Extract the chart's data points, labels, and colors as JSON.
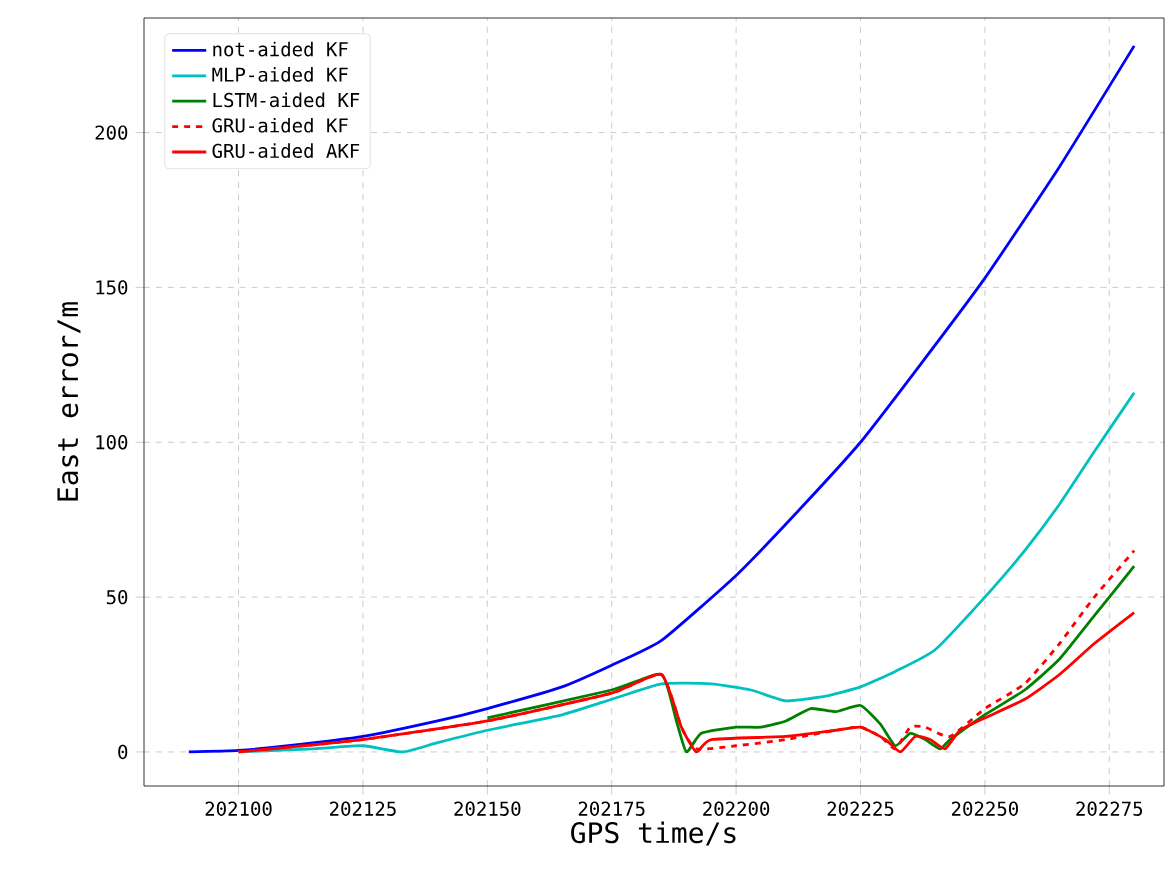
{
  "chart_data": {
    "type": "line",
    "xlabel": "GPS time/s",
    "ylabel": "East error/m",
    "xlim": [
      202081,
      202286
    ],
    "ylim": [
      -11,
      237
    ],
    "xticks": [
      202100,
      202125,
      202150,
      202175,
      202200,
      202225,
      202250,
      202275
    ],
    "yticks": [
      0,
      50,
      100,
      150,
      200
    ],
    "grid": true,
    "legend": "top left",
    "series": [
      {
        "name": "not-aided KF",
        "color": "#0000ff",
        "line_style": "solid",
        "x": [
          202090,
          202100,
          202110,
          202125,
          202140,
          202150,
          202165,
          202175,
          202185,
          202200,
          202212,
          202225,
          202237,
          202250,
          202265,
          202280
        ],
        "values": [
          0,
          0.5,
          2,
          5,
          10,
          14,
          21,
          28,
          36,
          57,
          77,
          100,
          125,
          153,
          189,
          228
        ]
      },
      {
        "name": "MLP-aided KF",
        "color": "#00c0c0",
        "line_style": "solid",
        "x": [
          202100,
          202115,
          202125,
          202133,
          202140,
          202150,
          202165,
          202175,
          202185,
          202195,
          202203,
          202210,
          202218,
          202225,
          202232,
          202240,
          202250,
          202258,
          202265,
          202272,
          202280
        ],
        "values": [
          0,
          1,
          2,
          0,
          3,
          7,
          12,
          17,
          22,
          22,
          20,
          16.5,
          18,
          21,
          26,
          33,
          50,
          65,
          80,
          97,
          116
        ]
      },
      {
        "name": "LSTM-aided KF",
        "color": "#008000",
        "line_style": "solid",
        "x": [
          202150,
          202175,
          202185,
          202188,
          202190,
          202193,
          202200,
          202205,
          202210,
          202215,
          202220,
          202225,
          202229,
          202232,
          202235,
          202238,
          202241,
          202243,
          202250,
          202258,
          202265,
          202272,
          202280
        ],
        "values": [
          11,
          20,
          25,
          10,
          0,
          6,
          8,
          8,
          10,
          14,
          13,
          15,
          9,
          2,
          6,
          4,
          1,
          4,
          12,
          20,
          30,
          44,
          60
        ]
      },
      {
        "name": "GRU-aided KF",
        "color": "#ff0000",
        "line_style": "dashed",
        "x": [
          202100,
          202125,
          202150,
          202175,
          202185,
          202189,
          202192,
          202200,
          202210,
          202220,
          202225,
          202229,
          202232,
          202235,
          202238,
          202243,
          202250,
          202258,
          202265,
          202272,
          202280
        ],
        "values": [
          0,
          4,
          10,
          19,
          25,
          8,
          1,
          2,
          4,
          7,
          8,
          5,
          1,
          8,
          8,
          5,
          14,
          22,
          35,
          50,
          65
        ]
      },
      {
        "name": "GRU-aided AKF",
        "color": "#ff0000",
        "line_style": "solid",
        "x": [
          202100,
          202125,
          202150,
          202175,
          202185,
          202189,
          202192,
          202195,
          202210,
          202220,
          202225,
          202230,
          202233,
          202236,
          202239,
          202242,
          202245,
          202250,
          202258,
          202265,
          202272,
          202280
        ],
        "values": [
          0,
          4,
          10,
          19,
          25,
          8,
          0,
          4,
          5,
          7,
          8,
          4,
          0,
          5,
          4,
          1,
          7,
          11,
          17,
          25,
          35,
          45
        ]
      }
    ]
  }
}
